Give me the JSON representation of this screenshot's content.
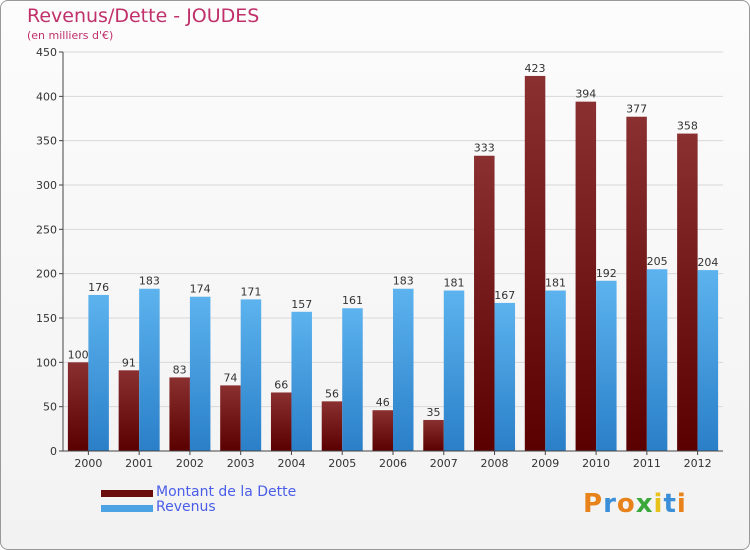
{
  "header": {
    "title": "Revenus/Dette - JOUDES",
    "subtitle": "(en milliers d'€)"
  },
  "legend": {
    "items": [
      {
        "label": "Montant de la Dette",
        "color": "#6b0d0d"
      },
      {
        "label": "Revenus",
        "color": "#4ba3e3"
      }
    ]
  },
  "brand": {
    "letters": [
      "P",
      "r",
      "o",
      "x",
      "i",
      "t",
      "i"
    ],
    "colors": [
      "#e8821a",
      "#3a8fd8",
      "#e8821a",
      "#3aa83a",
      "#e8c21a",
      "#3a8fd8",
      "#e8821a"
    ]
  },
  "chart_data": {
    "type": "bar",
    "categories": [
      "2000",
      "2001",
      "2002",
      "2003",
      "2004",
      "2005",
      "2006",
      "2007",
      "2008",
      "2009",
      "2010",
      "2011",
      "2012"
    ],
    "series": [
      {
        "name": "Montant de la Dette",
        "color": "#6b0d0d",
        "values": [
          100,
          91,
          83,
          74,
          66,
          56,
          46,
          35,
          333,
          423,
          394,
          377,
          358
        ]
      },
      {
        "name": "Revenus",
        "color": "#4ba3e3",
        "values": [
          176,
          183,
          174,
          171,
          157,
          161,
          183,
          181,
          167,
          181,
          192,
          205,
          204
        ]
      }
    ],
    "ylim": [
      0,
      450
    ],
    "yticks": [
      0,
      50,
      100,
      150,
      200,
      250,
      300,
      350,
      400,
      450
    ],
    "grid": true
  }
}
